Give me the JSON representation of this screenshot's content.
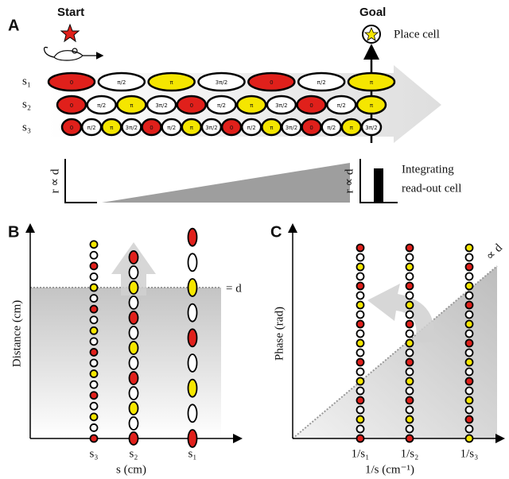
{
  "panel_a": {
    "label": "A",
    "start": "Start",
    "goal": "Goal",
    "place_cell": "Place cell",
    "rows": [
      "s₁",
      "s₂",
      "s₃"
    ],
    "phases": [
      "0",
      "π/2",
      "π",
      "3π/2"
    ],
    "rate_axis": "r ∝ d",
    "readout": [
      "Integrating",
      "read-out cell"
    ]
  },
  "panel_b": {
    "label": "B",
    "y_axis": "Distance (cm)",
    "x_axis": "s (cm)",
    "threshold": "= d",
    "ticks": [
      "s₃",
      "s₂",
      "s₁"
    ]
  },
  "panel_c": {
    "label": "C",
    "y_axis": "Phase (rad)",
    "x_axis": "1/s (cm⁻¹)",
    "slope": "∝ d",
    "ticks": [
      "1/s₁",
      "1/s₂",
      "1/s₃"
    ]
  }
}
